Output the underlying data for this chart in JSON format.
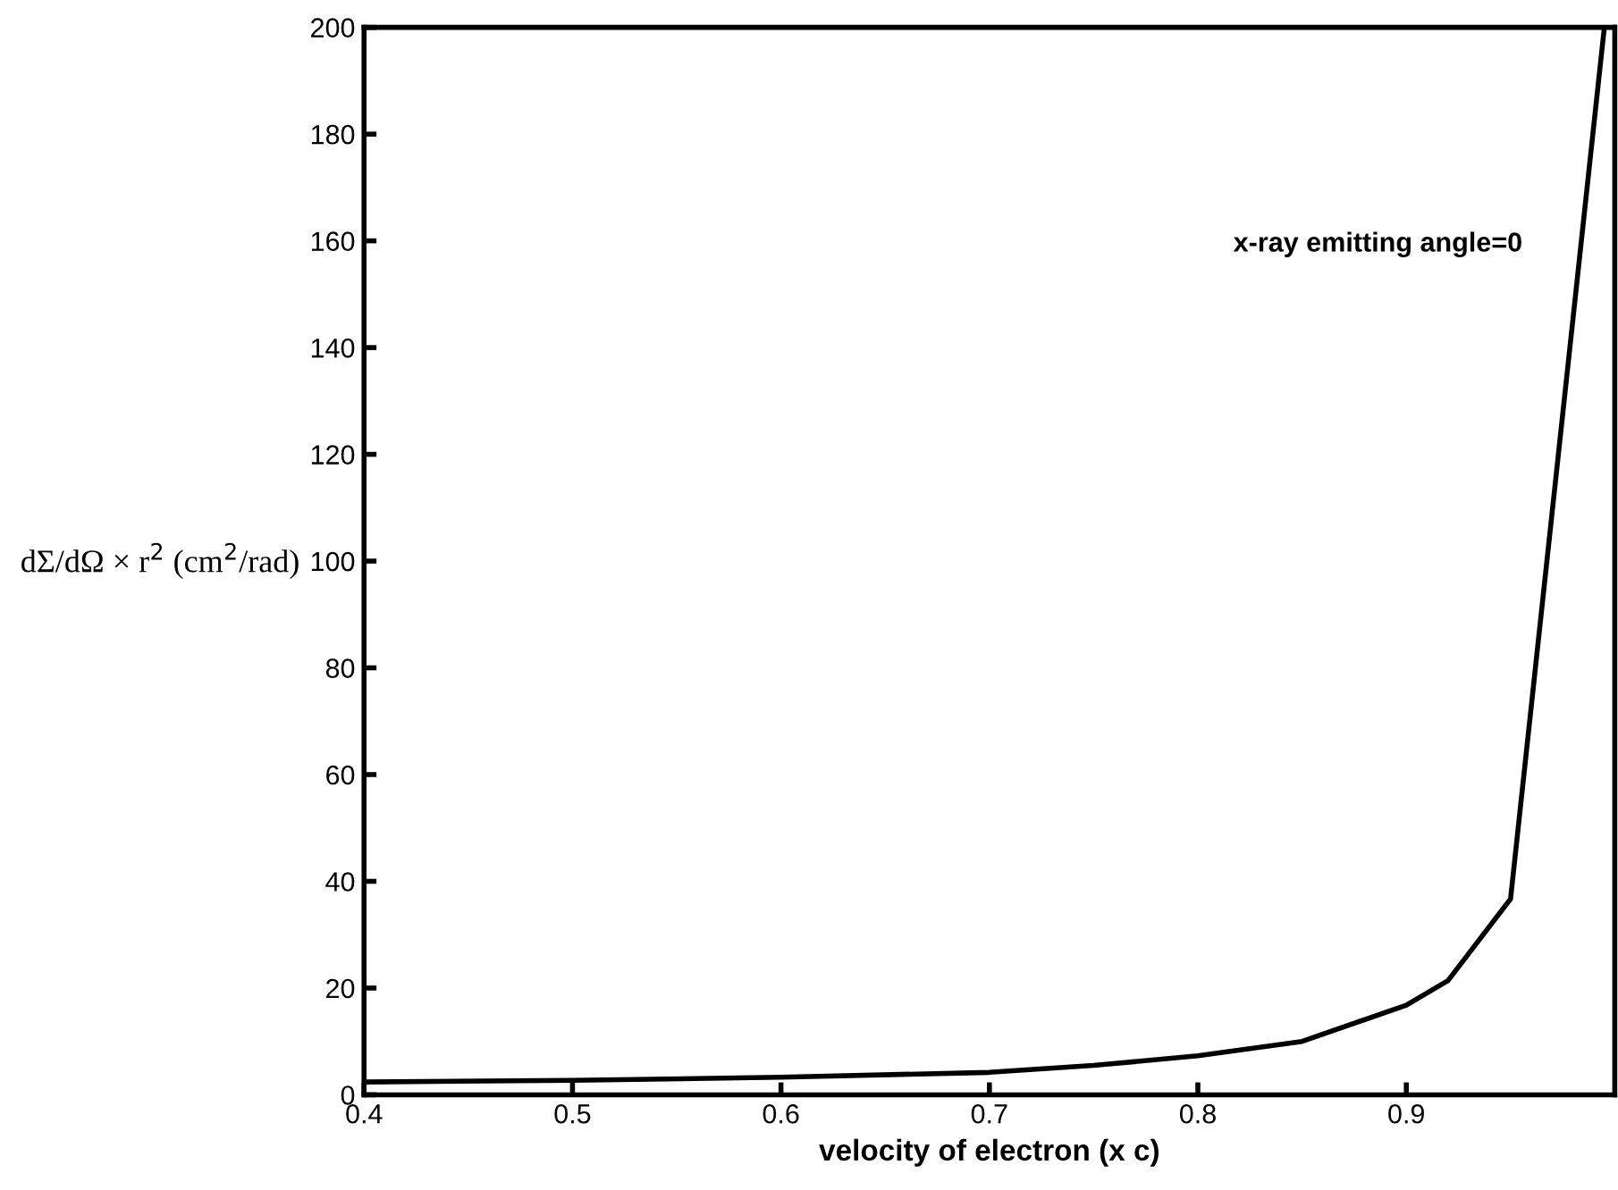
{
  "chart_data": {
    "type": "line",
    "xlabel": "velocity of electron (x c)",
    "ylabel": "dΣ/dΩ × r$^{2}$ (cm$^{2}$/rad)",
    "annotations": [
      "x-ray emitting angle=0"
    ],
    "x": [
      0.4,
      0.5,
      0.6,
      0.7,
      0.75,
      0.8,
      0.85,
      0.9,
      0.92,
      0.95,
      0.995
    ],
    "series": [
      {
        "color": "#000000",
        "values": [
          2.4,
          2.7,
          3.3,
          4.2,
          5.5,
          7.3,
          10,
          16.8,
          21.4,
          36.7,
          200
        ]
      }
    ],
    "xlim": [
      0.4,
      1.0
    ],
    "ylim": [
      0,
      200
    ],
    "xticks": [
      0.4,
      0.5,
      0.6,
      0.7,
      0.8,
      0.9
    ],
    "yticks": [
      0,
      20,
      40,
      60,
      80,
      100,
      120,
      140,
      160,
      180,
      200
    ],
    "grid": false,
    "legend": false,
    "marker": "none",
    "line_style": "solid"
  }
}
